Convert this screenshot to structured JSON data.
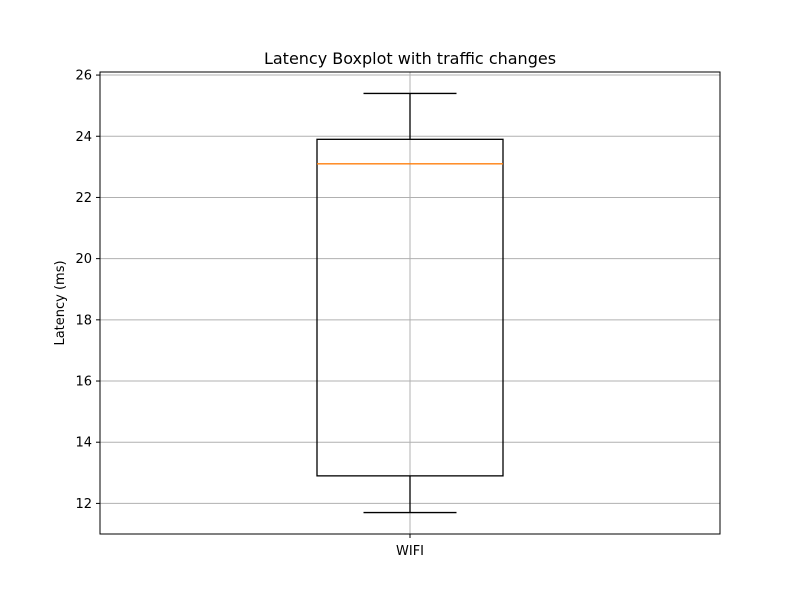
{
  "chart_data": {
    "type": "boxplot",
    "title": "Latency Boxplot with traffic changes",
    "xlabel": "",
    "ylabel": "Latency (ms)",
    "ylim": [
      11.0,
      26.1
    ],
    "yticks": [
      12,
      14,
      16,
      18,
      20,
      22,
      24,
      26
    ],
    "grid": true,
    "categories": [
      "WIFI"
    ],
    "boxes": [
      {
        "category": "WIFI",
        "whisker_low": 11.7,
        "q1": 12.9,
        "median": 23.1,
        "q3": 23.9,
        "whisker_high": 25.4
      }
    ],
    "colors": {
      "box": "#000000",
      "median": "#ff7f0e",
      "grid": "#b0b0b0"
    }
  }
}
